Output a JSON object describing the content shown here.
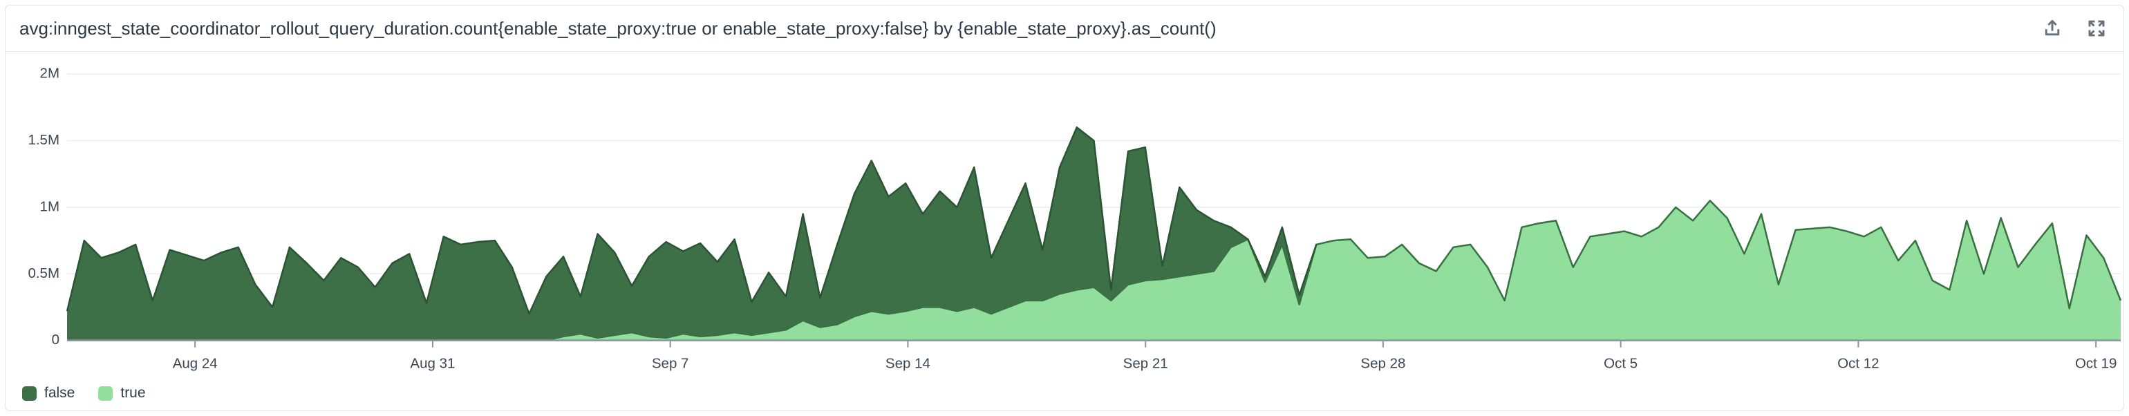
{
  "header": {
    "title": "avg:inngest_state_coordinator_rollout_query_duration.count{enable_state_proxy:true or enable_state_proxy:false} by {enable_state_proxy}.as_count()",
    "actions": [
      {
        "name": "share-export",
        "icon": "share-icon"
      },
      {
        "name": "fullscreen",
        "icon": "expand-icon"
      }
    ]
  },
  "chart_data": {
    "type": "area",
    "stacked": true,
    "title": "avg:inngest_state_coordinator_rollout_query_duration.count{enable_state_proxy:true or enable_state_proxy:false} by {enable_state_proxy}.as_count()",
    "grid": "horizontal",
    "legend_position": "bottom-left",
    "y_axis": {
      "range": [
        0,
        2
      ],
      "unit": "millions",
      "ticks": [
        {
          "label": "0",
          "value": 0
        },
        {
          "label": "0.5M",
          "value": 0.5
        },
        {
          "label": "1M",
          "value": 1
        },
        {
          "label": "1.5M",
          "value": 1.5
        },
        {
          "label": "2M",
          "value": 2
        }
      ]
    },
    "x_axis": {
      "start": "Aug 20",
      "span_days": 60.5,
      "ticks": [
        {
          "label": "Aug 24",
          "day": 3.77
        },
        {
          "label": "Aug 31",
          "day": 10.77
        },
        {
          "label": "Sep 7",
          "day": 17.77
        },
        {
          "label": "Sep 14",
          "day": 24.77
        },
        {
          "label": "Sep 21",
          "day": 31.77
        },
        {
          "label": "Sep 28",
          "day": 38.77
        },
        {
          "label": "Oct 5",
          "day": 45.77
        },
        {
          "label": "Oct 12",
          "day": 52.77
        },
        {
          "label": "Oct 19",
          "day": 59.77
        }
      ]
    },
    "series": [
      {
        "name": "false",
        "fill": "#3E7048",
        "stroke": "#2B5434",
        "values": [
          0.22,
          0.75,
          0.62,
          0.66,
          0.72,
          0.3,
          0.68,
          0.64,
          0.6,
          0.66,
          0.7,
          0.42,
          0.25,
          0.7,
          0.58,
          0.45,
          0.62,
          0.55,
          0.4,
          0.58,
          0.65,
          0.28,
          0.78,
          0.72,
          0.74,
          0.75,
          0.55,
          0.2,
          0.48,
          0.6,
          0.28,
          0.78,
          0.62,
          0.35,
          0.6,
          0.72,
          0.62,
          0.7,
          0.55,
          0.7,
          0.25,
          0.45,
          0.25,
          0.8,
          0.22,
          0.6,
          0.92,
          1.13,
          0.88,
          0.96,
          0.7,
          0.87,
          0.78,
          1.05,
          0.42,
          0.65,
          0.88,
          0.38,
          0.95,
          1.22,
          1.1,
          0.08,
          1.0,
          1.0,
          0.1,
          0.67,
          0.48,
          0.38,
          0.15,
          0.0,
          0.04,
          0.13,
          0.07,
          0,
          0,
          0,
          0,
          0,
          0,
          0,
          0,
          0,
          0,
          0,
          0,
          0,
          0,
          0,
          0,
          0,
          0,
          0,
          0,
          0,
          0,
          0,
          0,
          0,
          0,
          0,
          0,
          0,
          0,
          0,
          0,
          0,
          0,
          0,
          0,
          0,
          0,
          0,
          0,
          0,
          0,
          0,
          0,
          0,
          0,
          0,
          0
        ]
      },
      {
        "name": "true",
        "fill": "#91DE9D",
        "stroke": "#36713F",
        "values": [
          0,
          0,
          0,
          0,
          0,
          0,
          0,
          0,
          0,
          0,
          0,
          0,
          0,
          0,
          0,
          0,
          0,
          0,
          0,
          0,
          0,
          0,
          0,
          0,
          0,
          0,
          0,
          0,
          0,
          0.03,
          0.05,
          0.02,
          0.04,
          0.06,
          0.03,
          0.02,
          0.05,
          0.03,
          0.04,
          0.06,
          0.04,
          0.06,
          0.08,
          0.15,
          0.1,
          0.12,
          0.18,
          0.22,
          0.2,
          0.22,
          0.25,
          0.25,
          0.22,
          0.25,
          0.2,
          0.25,
          0.3,
          0.3,
          0.35,
          0.38,
          0.4,
          0.3,
          0.42,
          0.45,
          0.46,
          0.48,
          0.5,
          0.52,
          0.7,
          0.76,
          0.44,
          0.72,
          0.27,
          0.72,
          0.75,
          0.76,
          0.62,
          0.63,
          0.72,
          0.58,
          0.52,
          0.7,
          0.72,
          0.55,
          0.3,
          0.85,
          0.88,
          0.9,
          0.55,
          0.78,
          0.8,
          0.82,
          0.78,
          0.85,
          1.0,
          0.9,
          1.05,
          0.92,
          0.65,
          0.95,
          0.42,
          0.83,
          0.84,
          0.85,
          0.82,
          0.78,
          0.85,
          0.6,
          0.75,
          0.45,
          0.38,
          0.9,
          0.5,
          0.92,
          0.55,
          0.72,
          0.88,
          0.24,
          0.79,
          0.62,
          0.3
        ]
      }
    ]
  }
}
